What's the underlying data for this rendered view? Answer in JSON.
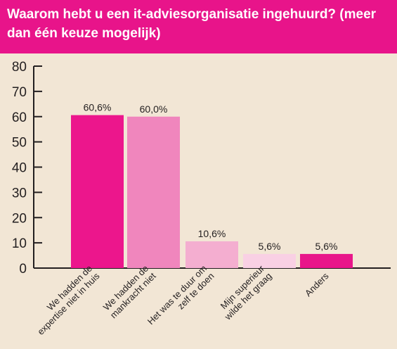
{
  "chart_data": {
    "type": "bar",
    "title": "Waarom hebt u een it-adviesorganisatie ingehuurd? (meer dan één keuze mogelijk)",
    "xlabel": "",
    "ylabel": "",
    "ylim": [
      0,
      80
    ],
    "yticks": [
      0,
      10,
      20,
      30,
      40,
      50,
      60,
      70,
      80
    ],
    "grid": false,
    "categories": [
      [
        "We hadden de",
        "expertise niet in huis"
      ],
      [
        "We hadden de",
        "mankracht niet"
      ],
      [
        "Het was te duur om",
        "zelf te doen"
      ],
      [
        "Mijn superieur",
        "wilde het graag"
      ],
      [
        "Anders"
      ]
    ],
    "values": [
      60.6,
      60.0,
      10.6,
      5.6,
      5.6
    ],
    "value_labels": [
      "60,6%",
      "60,0%",
      "10,6%",
      "5,6%",
      "5,6%"
    ],
    "colors": [
      "#ec168c",
      "#f086bd",
      "#f4aed0",
      "#f9d0e4",
      "#e8168a"
    ]
  }
}
